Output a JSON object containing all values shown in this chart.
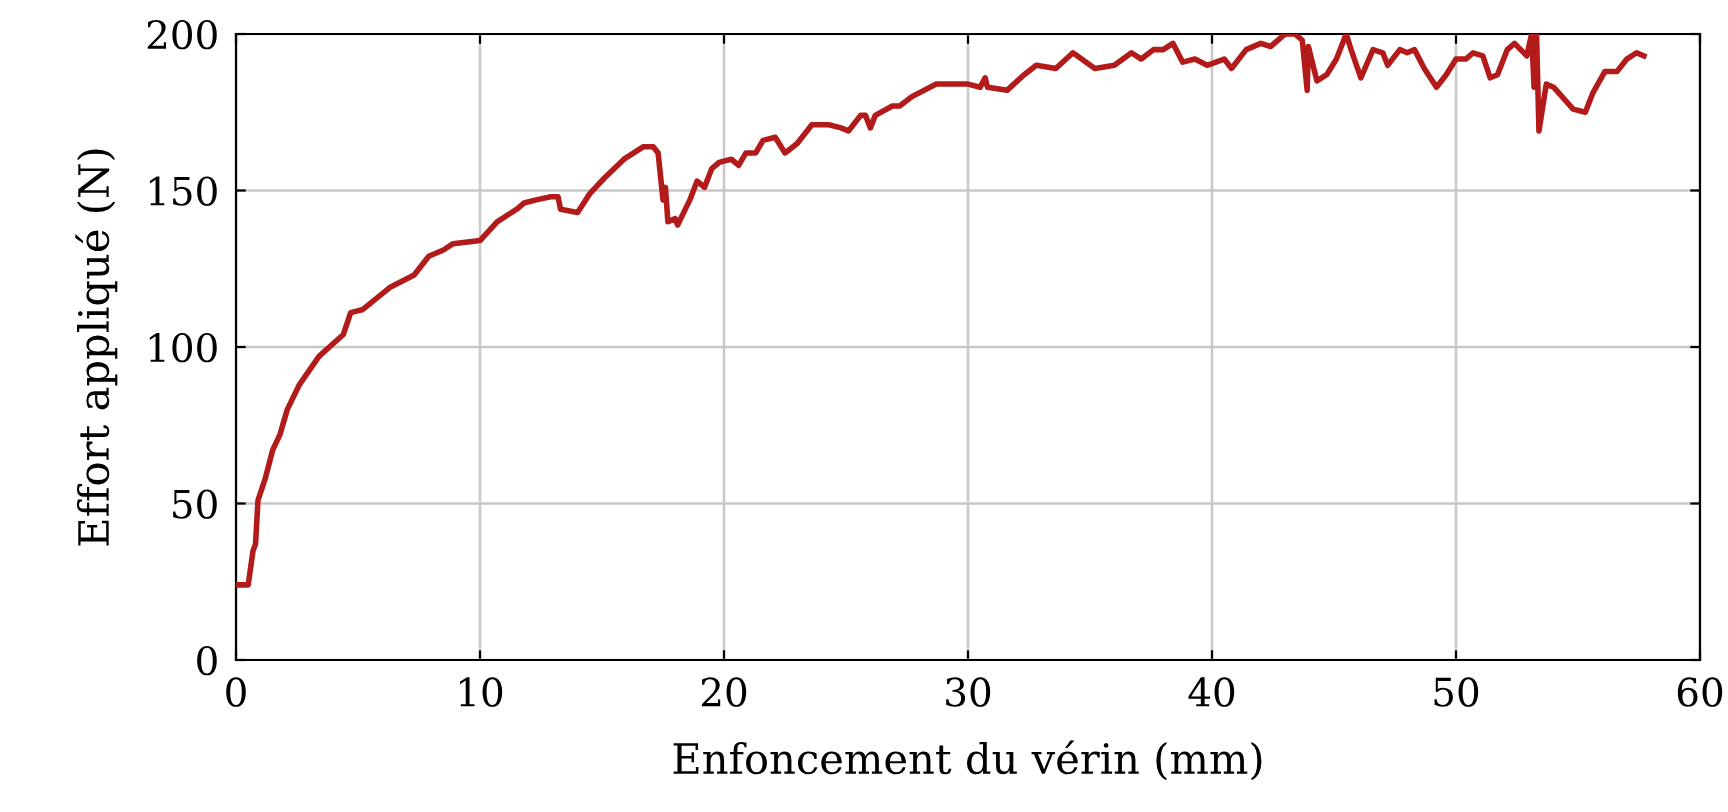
{
  "chart_data": {
    "type": "line",
    "xlabel": "Enfoncement du vérin (mm)",
    "ylabel": "Effort appliqué (N)",
    "xlim": [
      0,
      60
    ],
    "ylim": [
      0,
      200
    ],
    "xticks": [
      0,
      10,
      20,
      30,
      40,
      50,
      60
    ],
    "yticks": [
      0,
      50,
      100,
      150,
      200
    ],
    "grid": true,
    "marker": "none",
    "line_style": "solid",
    "series": [
      {
        "color": "#b31b1b",
        "x": [
          0,
          0.5,
          0.7,
          0.8,
          0.9,
          1.2,
          1.5,
          1.8,
          2.1,
          2.6,
          3.4,
          4.4,
          4.7,
          5.2,
          6.3,
          7.3,
          7.9,
          8.5,
          8.9,
          10,
          10.7,
          11.5,
          11.8,
          12.3,
          12.9,
          13.2,
          13.3,
          14,
          14.5,
          15.1,
          15.9,
          16.7,
          17.1,
          17.3,
          17.5,
          17.6,
          17.7,
          18,
          18.1,
          18.6,
          18.9,
          19.2,
          19.5,
          19.8,
          20.3,
          20.6,
          20.9,
          21.3,
          21.6,
          22.1,
          22.5,
          23,
          23.6,
          24.3,
          24.8,
          25.1,
          25.6,
          25.8,
          26,
          26.2,
          26.9,
          27.2,
          27.7,
          28.7,
          30,
          30.5,
          30.7,
          30.8,
          31.6,
          32.3,
          32.8,
          33.6,
          34.3,
          35.2,
          36,
          36.7,
          37.1,
          37.6,
          38,
          38.4,
          38.8,
          39.3,
          39.8,
          40.5,
          40.8,
          41.4,
          42,
          42.4,
          43,
          43.4,
          43.7,
          43.9,
          43.95,
          44.3,
          44.7,
          45.1,
          45.5,
          45.7,
          46.1,
          46.6,
          47,
          47.2,
          47.7,
          48,
          48.3,
          48.7,
          49.2,
          49.6,
          50,
          50.4,
          50.7,
          51.1,
          51.4,
          51.7,
          52.1,
          52.4,
          52.9,
          53.1,
          53.2,
          53.3,
          53.4,
          53.7,
          54,
          54.8,
          55.3,
          55.6,
          56.1,
          56.6,
          57,
          57.4,
          57.7
        ],
        "values": [
          24,
          24,
          35,
          37,
          51,
          58,
          67,
          72,
          80,
          88,
          97,
          104,
          111,
          112,
          119,
          123,
          129,
          131,
          133,
          134,
          140,
          144,
          146,
          147,
          148,
          148,
          144,
          143,
          149,
          154,
          160,
          164,
          164,
          162,
          147,
          151,
          140,
          141,
          139,
          147,
          153,
          151,
          157,
          159,
          160,
          158,
          162,
          162,
          166,
          167,
          162,
          165,
          171,
          171,
          170,
          169,
          174,
          174,
          170,
          174,
          177,
          177,
          180,
          184,
          184,
          183,
          186,
          183,
          182,
          187,
          190,
          189,
          194,
          189,
          190,
          194,
          192,
          195,
          195,
          197,
          191,
          192,
          190,
          192,
          189,
          195,
          197,
          196,
          200,
          200,
          198,
          182,
          196,
          185,
          187,
          192,
          200,
          195,
          186,
          195,
          194,
          190,
          195,
          194,
          195,
          189,
          183,
          187,
          192,
          192,
          194,
          193,
          186,
          187,
          195,
          197,
          193,
          200,
          183,
          200,
          169,
          184,
          183,
          176,
          175,
          181,
          188,
          188,
          192,
          194,
          193
        ]
      }
    ]
  }
}
